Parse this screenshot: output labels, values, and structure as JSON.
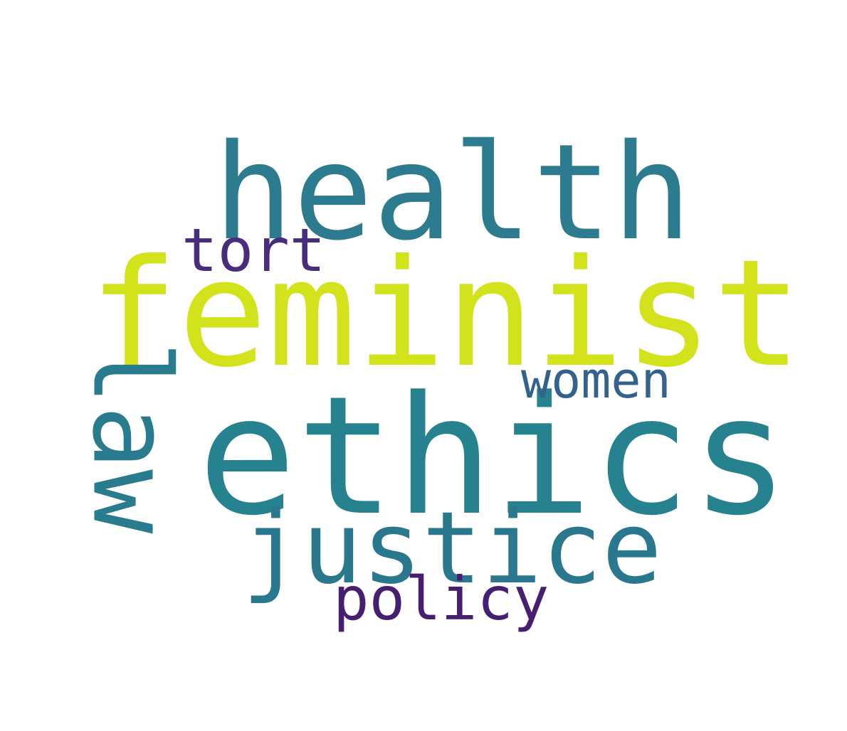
{
  "word_cloud": {
    "background": "#ffffff",
    "words": [
      {
        "key": "health",
        "text": "health",
        "color": "#2c7b8f"
      },
      {
        "key": "feminist",
        "text": "feminist",
        "color": "#d2e21b"
      },
      {
        "key": "ethics",
        "text": "ethics",
        "color": "#26828e"
      },
      {
        "key": "justice",
        "text": "justice",
        "color": "#2a788e"
      },
      {
        "key": "law",
        "text": "law",
        "color": "#287c8e"
      },
      {
        "key": "tort",
        "text": "tort",
        "color": "#472d7b"
      },
      {
        "key": "women",
        "text": "women",
        "color": "#33638d"
      },
      {
        "key": "policy",
        "text": "policy",
        "color": "#481f70"
      }
    ]
  }
}
